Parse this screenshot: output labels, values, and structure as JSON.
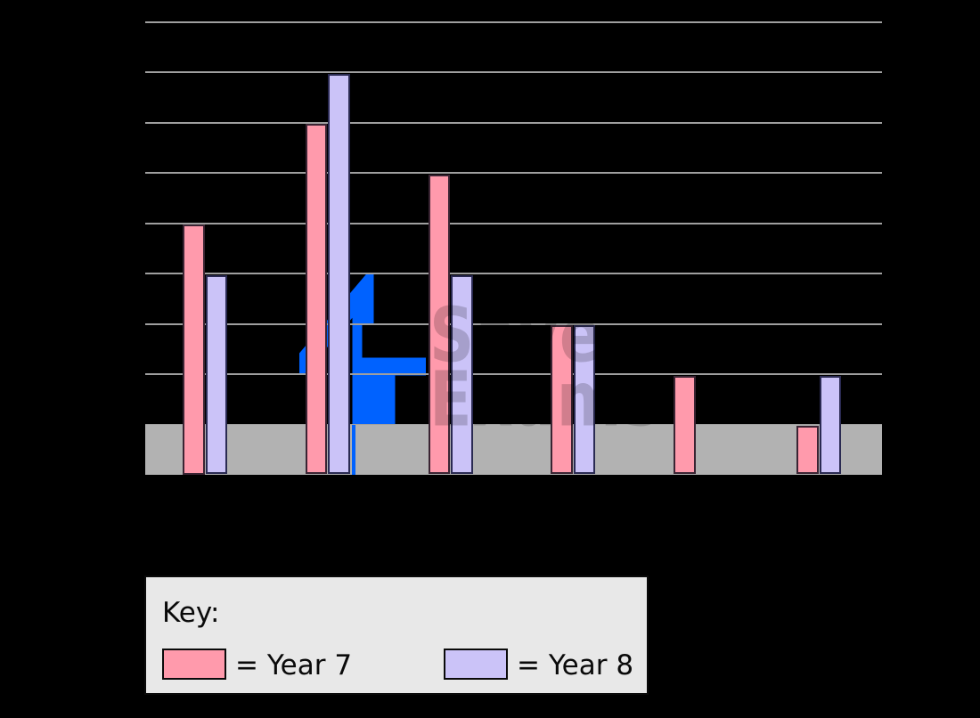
{
  "background_color": "#000000",
  "chart_data": {
    "type": "bar",
    "title": "",
    "categories": [
      "",
      "",
      "",
      "",
      "",
      ""
    ],
    "series": [
      {
        "name": "Year 7",
        "values": [
          5,
          7,
          6,
          3,
          2,
          1
        ],
        "color": "#FF9AAC",
        "outline": "#3A2433"
      },
      {
        "name": "Year 8",
        "values": [
          4,
          8,
          4,
          3,
          0,
          2
        ],
        "color": "#CBC3F8",
        "outline": "#2A2A52"
      }
    ],
    "ylim": [
      0,
      9
    ],
    "gridline_values": [
      1,
      2,
      3,
      4,
      5,
      6,
      7,
      8,
      9
    ],
    "grid": "on",
    "legend_position": "bottom-left"
  },
  "key": {
    "title": "Key:",
    "entries": [
      {
        "label": "= Year 7",
        "swatch_color": "#FF9AAC"
      },
      {
        "label": "= Year 8",
        "swatch_color": "#CBC3F8"
      }
    ]
  },
  "watermark": {
    "line1": "Save",
    "line2": "Exams",
    "logo_color": "#0062FF",
    "text_color": "rgba(0,0,0,0.18)"
  },
  "colors": {
    "gridline": "#9F9F9F",
    "axis_band": "#B2B2B2",
    "key_background": "#E8E8E8",
    "key_border": "#0A0A0A"
  }
}
